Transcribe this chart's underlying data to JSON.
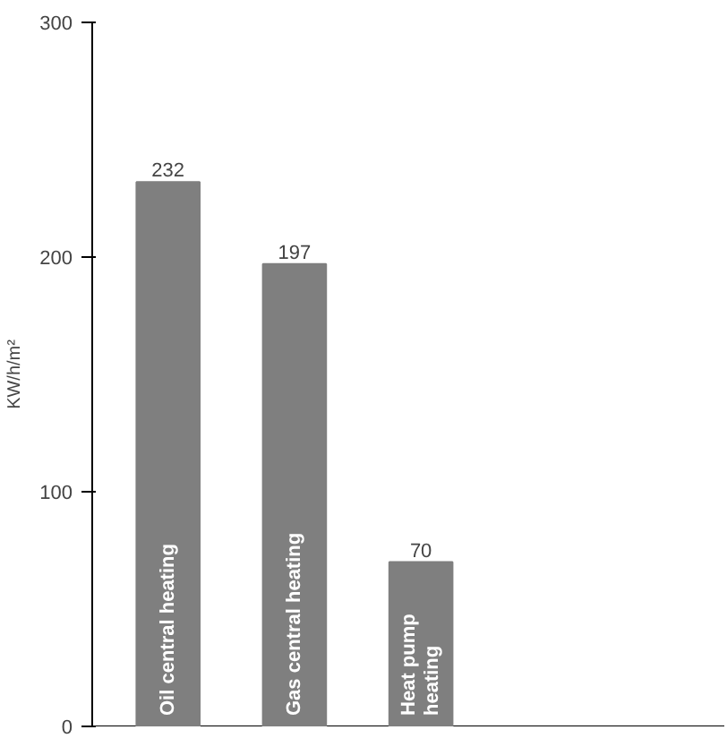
{
  "chart_data": {
    "type": "bar",
    "ylabel": "KW/h/m²",
    "categories": [
      "Oil central heating",
      "Gas central heating",
      "Heat pump\nheating"
    ],
    "values": [
      232,
      197,
      70
    ],
    "color": "#7f7f7f",
    "ylim": [
      0,
      300
    ],
    "yticks": [
      0,
      100,
      200,
      300
    ],
    "grid": false,
    "data_labels": true
  }
}
